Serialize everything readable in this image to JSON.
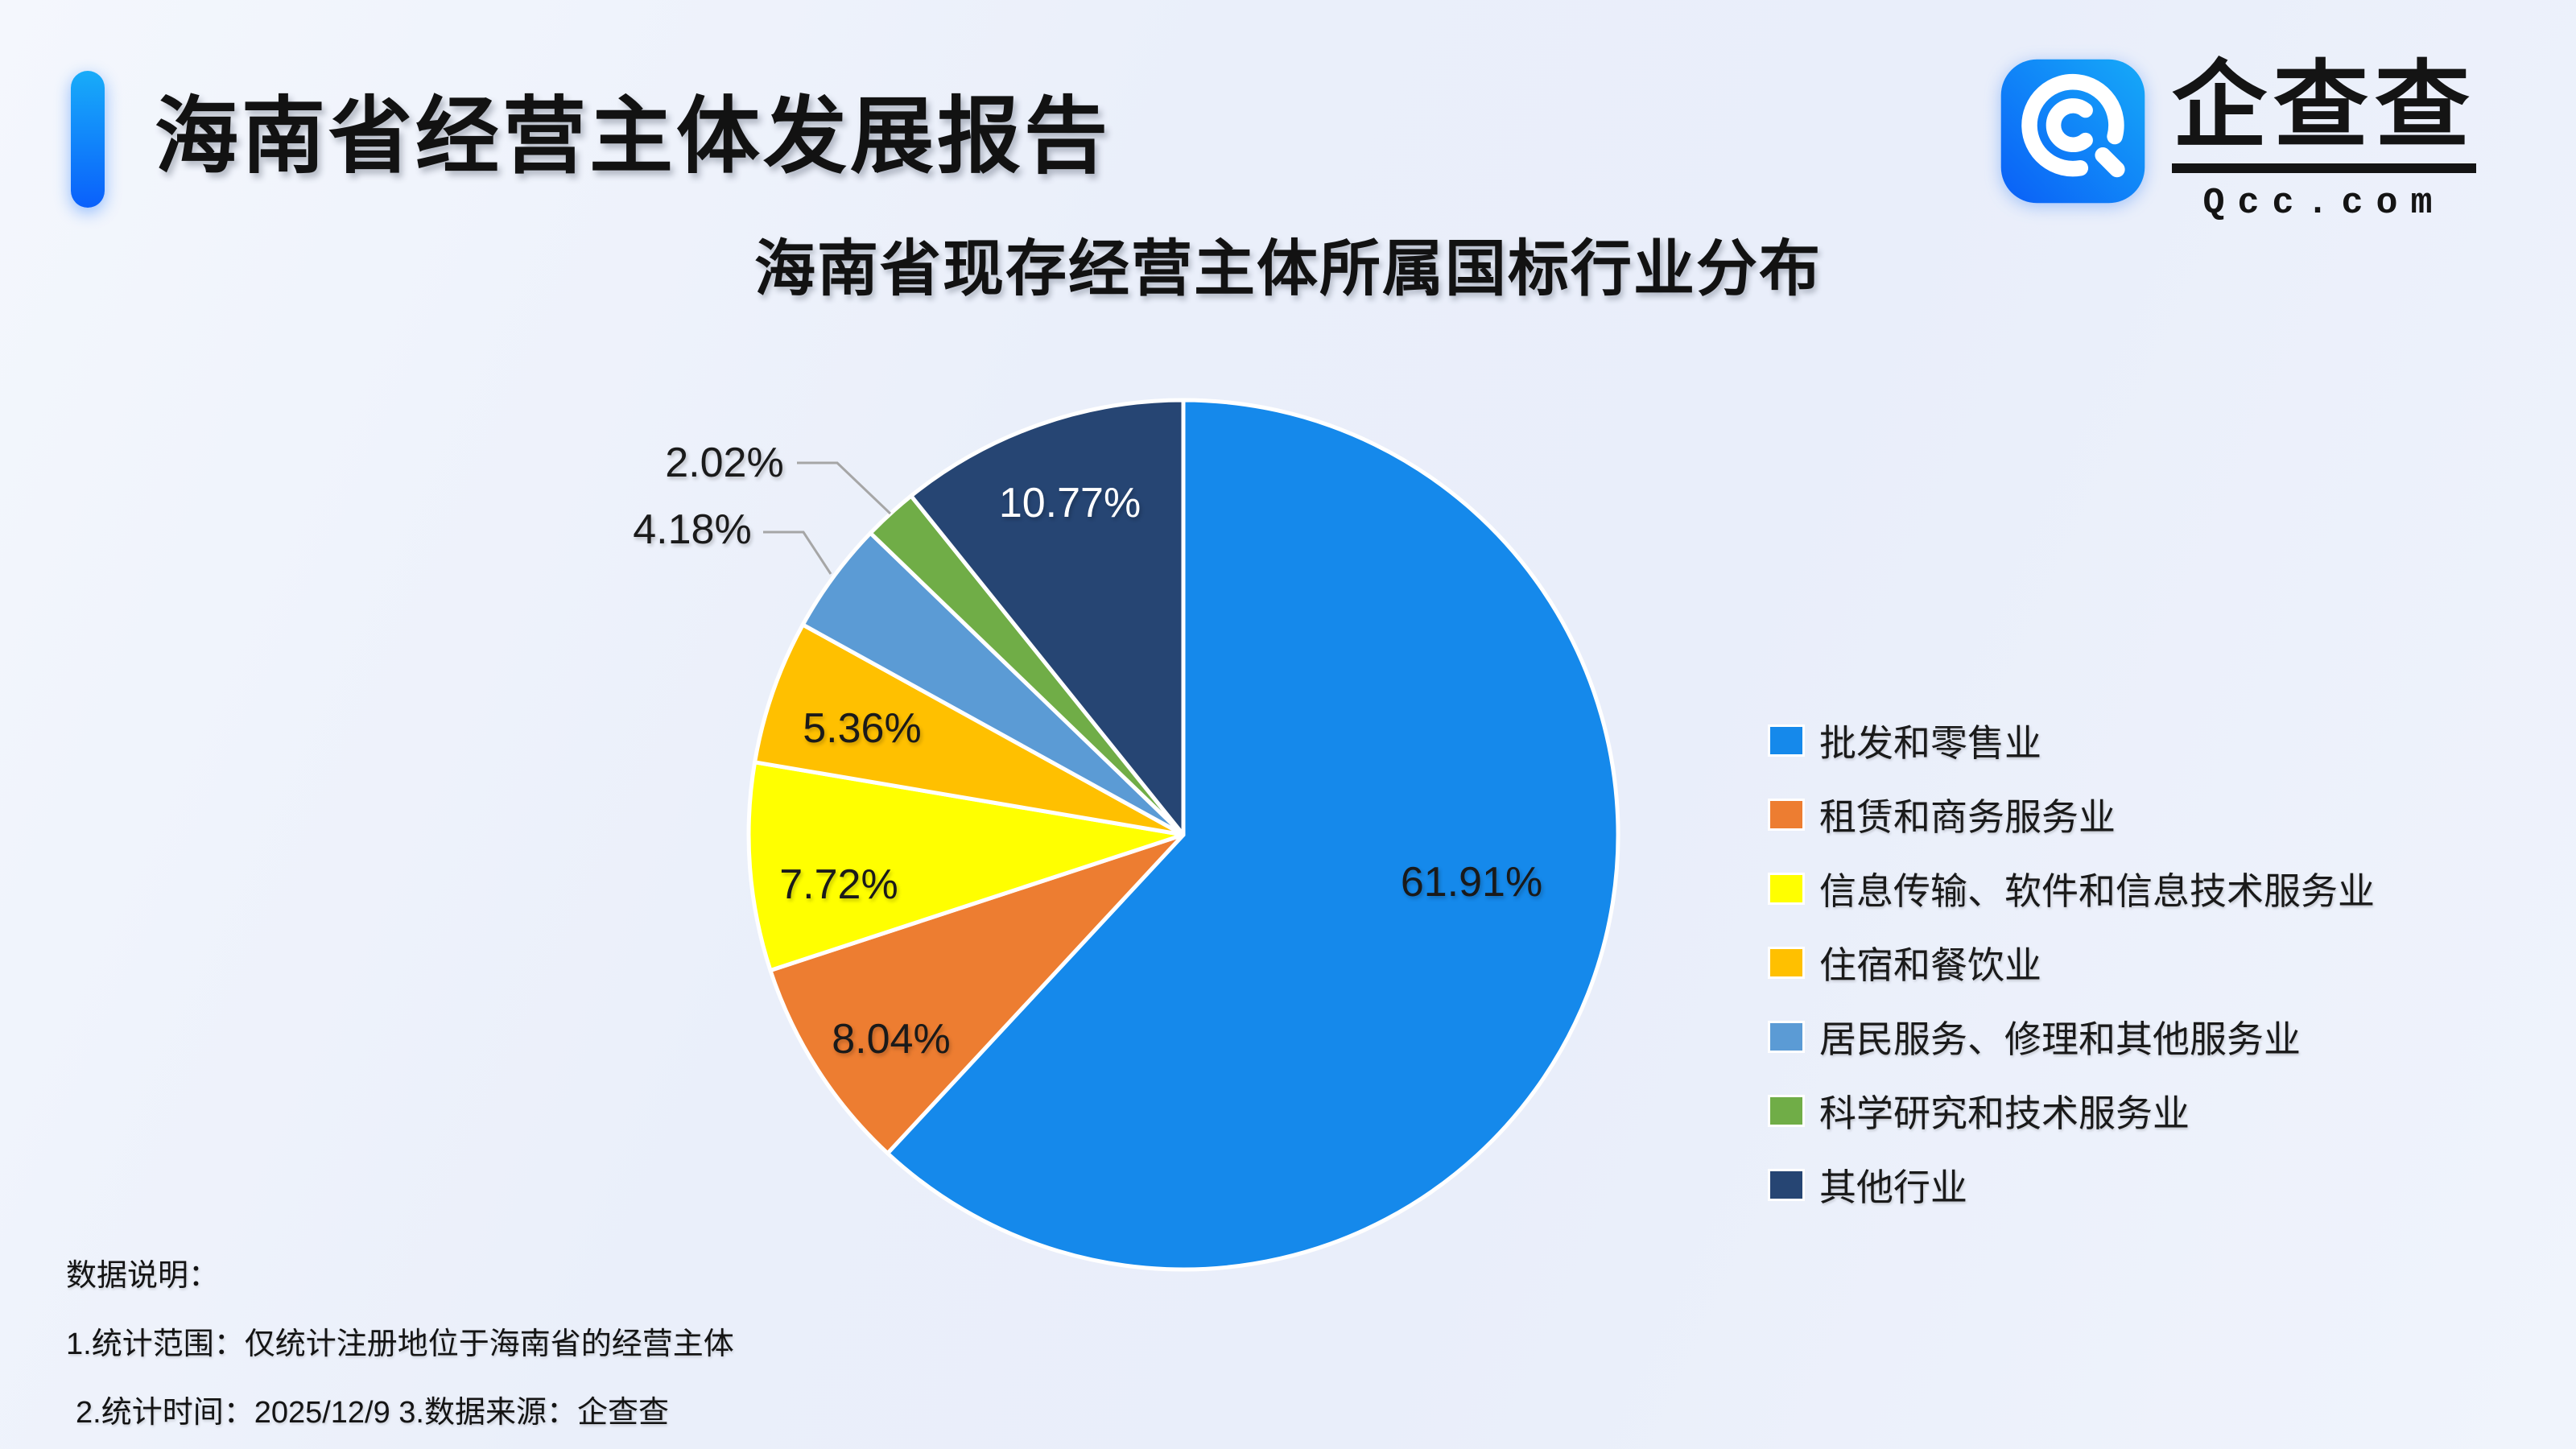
{
  "page": {
    "report_title": "海南省经营主体发展报告",
    "logo": {
      "name": "企查查",
      "domain": "Qcc.com"
    },
    "notes": {
      "heading": "数据说明：",
      "line1": "1.统计范围：仅统计注册地位于海南省的经营主体",
      "line2": "2.统计时间：2025/12/9  3.数据来源：企查查"
    }
  },
  "chart_data": {
    "type": "pie",
    "title": "海南省现存经营主体所属国标行业分布",
    "legend_position": "right",
    "start_angle_deg": 0,
    "direction": "clockwise",
    "unit": "%",
    "total": 100,
    "series": [
      {
        "name": "批发和零售业",
        "value": 61.91,
        "label": "61.91%",
        "color": "#1589EB"
      },
      {
        "name": "租赁和商务服务业",
        "value": 8.04,
        "label": "8.04%",
        "color": "#ED7D31"
      },
      {
        "name": "信息传输、软件和信息技术服务业",
        "value": 7.72,
        "label": "7.72%",
        "color": "#FFFF00"
      },
      {
        "name": "住宿和餐饮业",
        "value": 5.36,
        "label": "5.36%",
        "color": "#FFC000"
      },
      {
        "name": "居民服务、修理和其他服务业",
        "value": 4.18,
        "label": "4.18%",
        "color": "#5B9BD5"
      },
      {
        "name": "科学研究和技术服务业",
        "value": 2.02,
        "label": "2.02%",
        "color": "#70AD47"
      },
      {
        "name": "其他行业",
        "value": 10.77,
        "label": "10.77%",
        "color": "#264573"
      }
    ]
  }
}
